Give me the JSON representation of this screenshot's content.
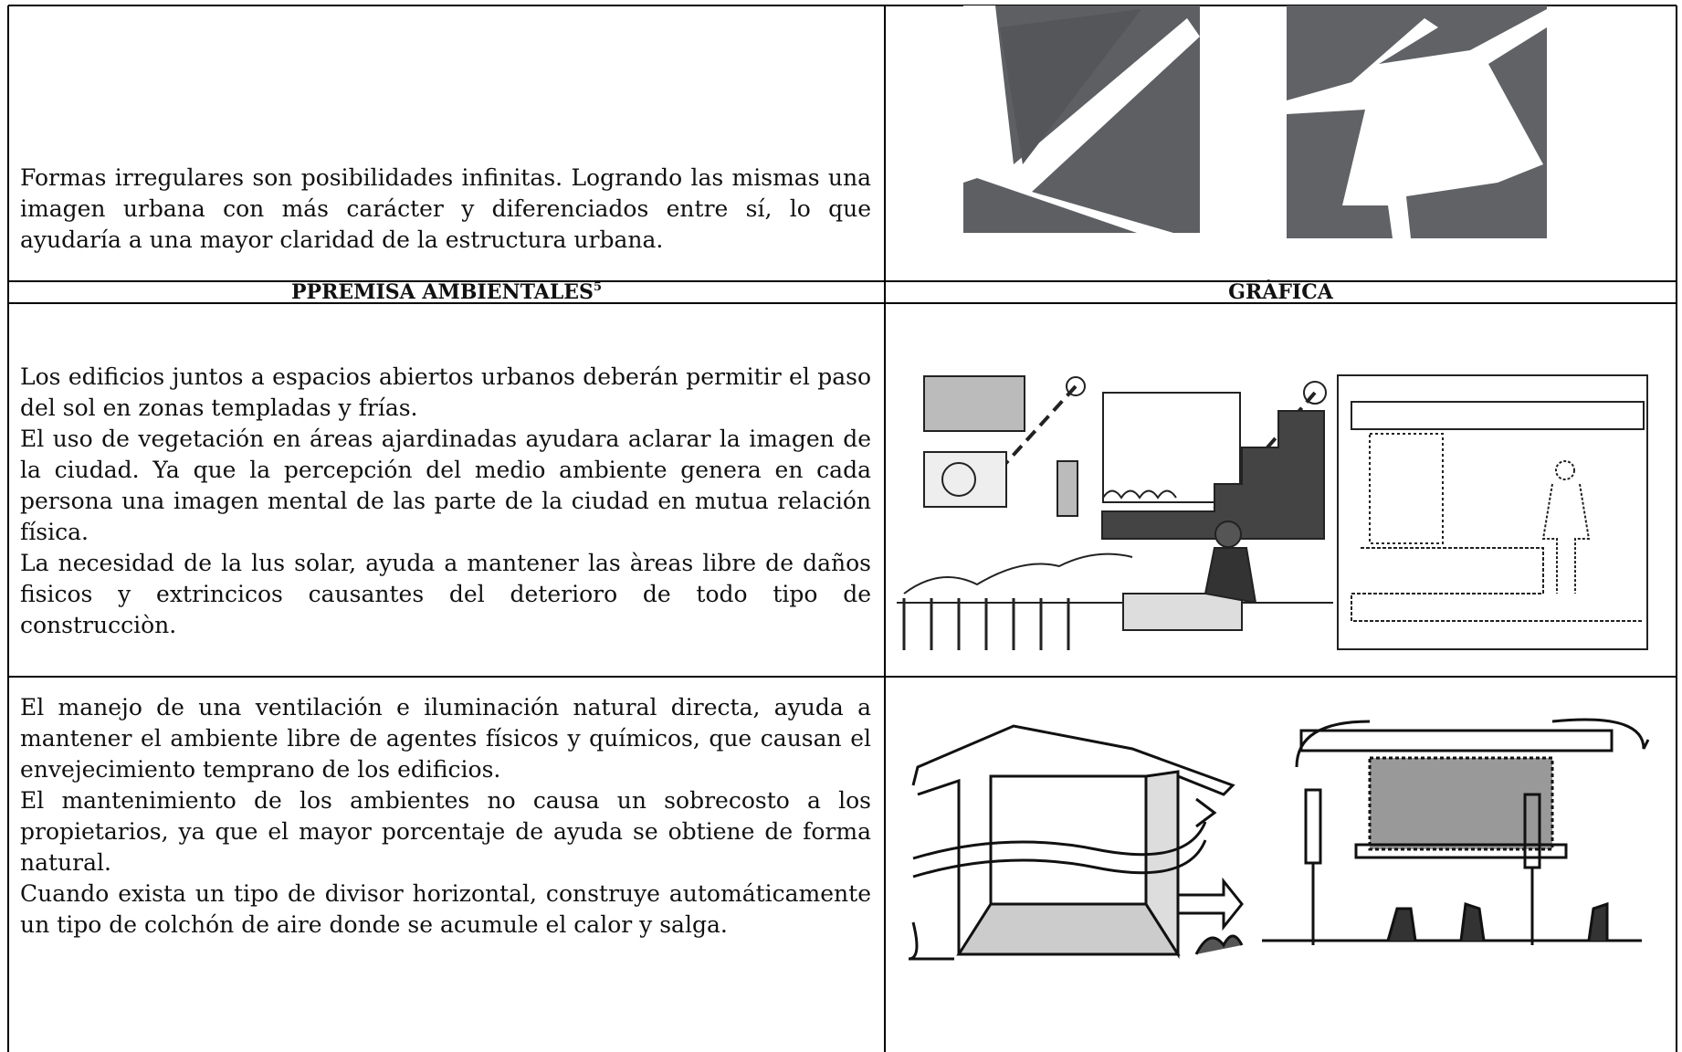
{
  "table": {
    "intro": {
      "paragraphs": [
        "Formas irregulares son posibilidades infinitas. Logrando las mismas una imagen urbana con más carácter y diferenciados entre sí, lo que ayudaría a una mayor claridad de la estructura urbana."
      ]
    },
    "header": {
      "left": "PPREMISA AMBIENTALES",
      "footnote": "5",
      "right": "GRÀFICA"
    },
    "rows": [
      {
        "paragraphs": [
          "Los edificios juntos a espacios abiertos urbanos deberán permitir el paso del sol en zonas templadas y frías.",
          "El uso de vegetación en áreas ajardinadas ayudara aclarar la imagen de la ciudad. Ya que la percepción del medio ambiente genera en cada persona una imagen mental de las parte de la ciudad en mutua relación física.",
          "La necesidad de la lus solar, ayuda a mantener las àreas libre de daños fisicos y extrincicos causantes del deterioro de todo tipo de construcciòn."
        ]
      },
      {
        "paragraphs": [
          "El manejo de una ventilación e iluminación natural directa, ayuda a mantener el ambiente libre de agentes físicos y químicos, que causan el envejecimiento temprano de los edificios.",
          "El mantenimiento de los ambientes no causa un sobrecosto a los propietarios, ya que el mayor porcentaje de ayuda se obtiene de forma natural.",
          "Cuando exista un tipo de divisor horizontal, construye automáticamente un tipo de colchón de aire donde se acumule el calor y salga."
        ]
      }
    ]
  }
}
